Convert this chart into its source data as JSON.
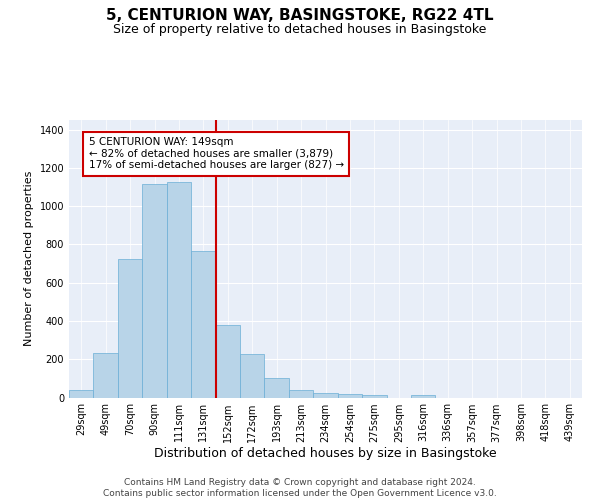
{
  "title": "5, CENTURION WAY, BASINGSTOKE, RG22 4TL",
  "subtitle": "Size of property relative to detached houses in Basingstoke",
  "xlabel": "Distribution of detached houses by size in Basingstoke",
  "ylabel": "Number of detached properties",
  "categories": [
    "29sqm",
    "49sqm",
    "70sqm",
    "90sqm",
    "111sqm",
    "131sqm",
    "152sqm",
    "172sqm",
    "193sqm",
    "213sqm",
    "234sqm",
    "254sqm",
    "275sqm",
    "295sqm",
    "316sqm",
    "336sqm",
    "357sqm",
    "377sqm",
    "398sqm",
    "418sqm",
    "439sqm"
  ],
  "values": [
    38,
    235,
    725,
    1115,
    1125,
    765,
    380,
    225,
    100,
    38,
    25,
    20,
    12,
    0,
    12,
    0,
    0,
    0,
    0,
    0,
    0
  ],
  "bar_color": "#b8d4e8",
  "bar_edge_color": "#6aaed6",
  "vline_color": "#cc0000",
  "annotation_text": "5 CENTURION WAY: 149sqm\n← 82% of detached houses are smaller (3,879)\n17% of semi-detached houses are larger (827) →",
  "annotation_box_color": "#ffffff",
  "annotation_box_edge": "#cc0000",
  "ylim": [
    0,
    1450
  ],
  "yticks": [
    0,
    200,
    400,
    600,
    800,
    1000,
    1200,
    1400
  ],
  "background_color": "#e8eef8",
  "grid_color": "#ffffff",
  "footer": "Contains HM Land Registry data © Crown copyright and database right 2024.\nContains public sector information licensed under the Open Government Licence v3.0.",
  "title_fontsize": 11,
  "subtitle_fontsize": 9,
  "xlabel_fontsize": 9,
  "ylabel_fontsize": 8,
  "tick_fontsize": 7,
  "annotation_fontsize": 7.5,
  "footer_fontsize": 6.5
}
